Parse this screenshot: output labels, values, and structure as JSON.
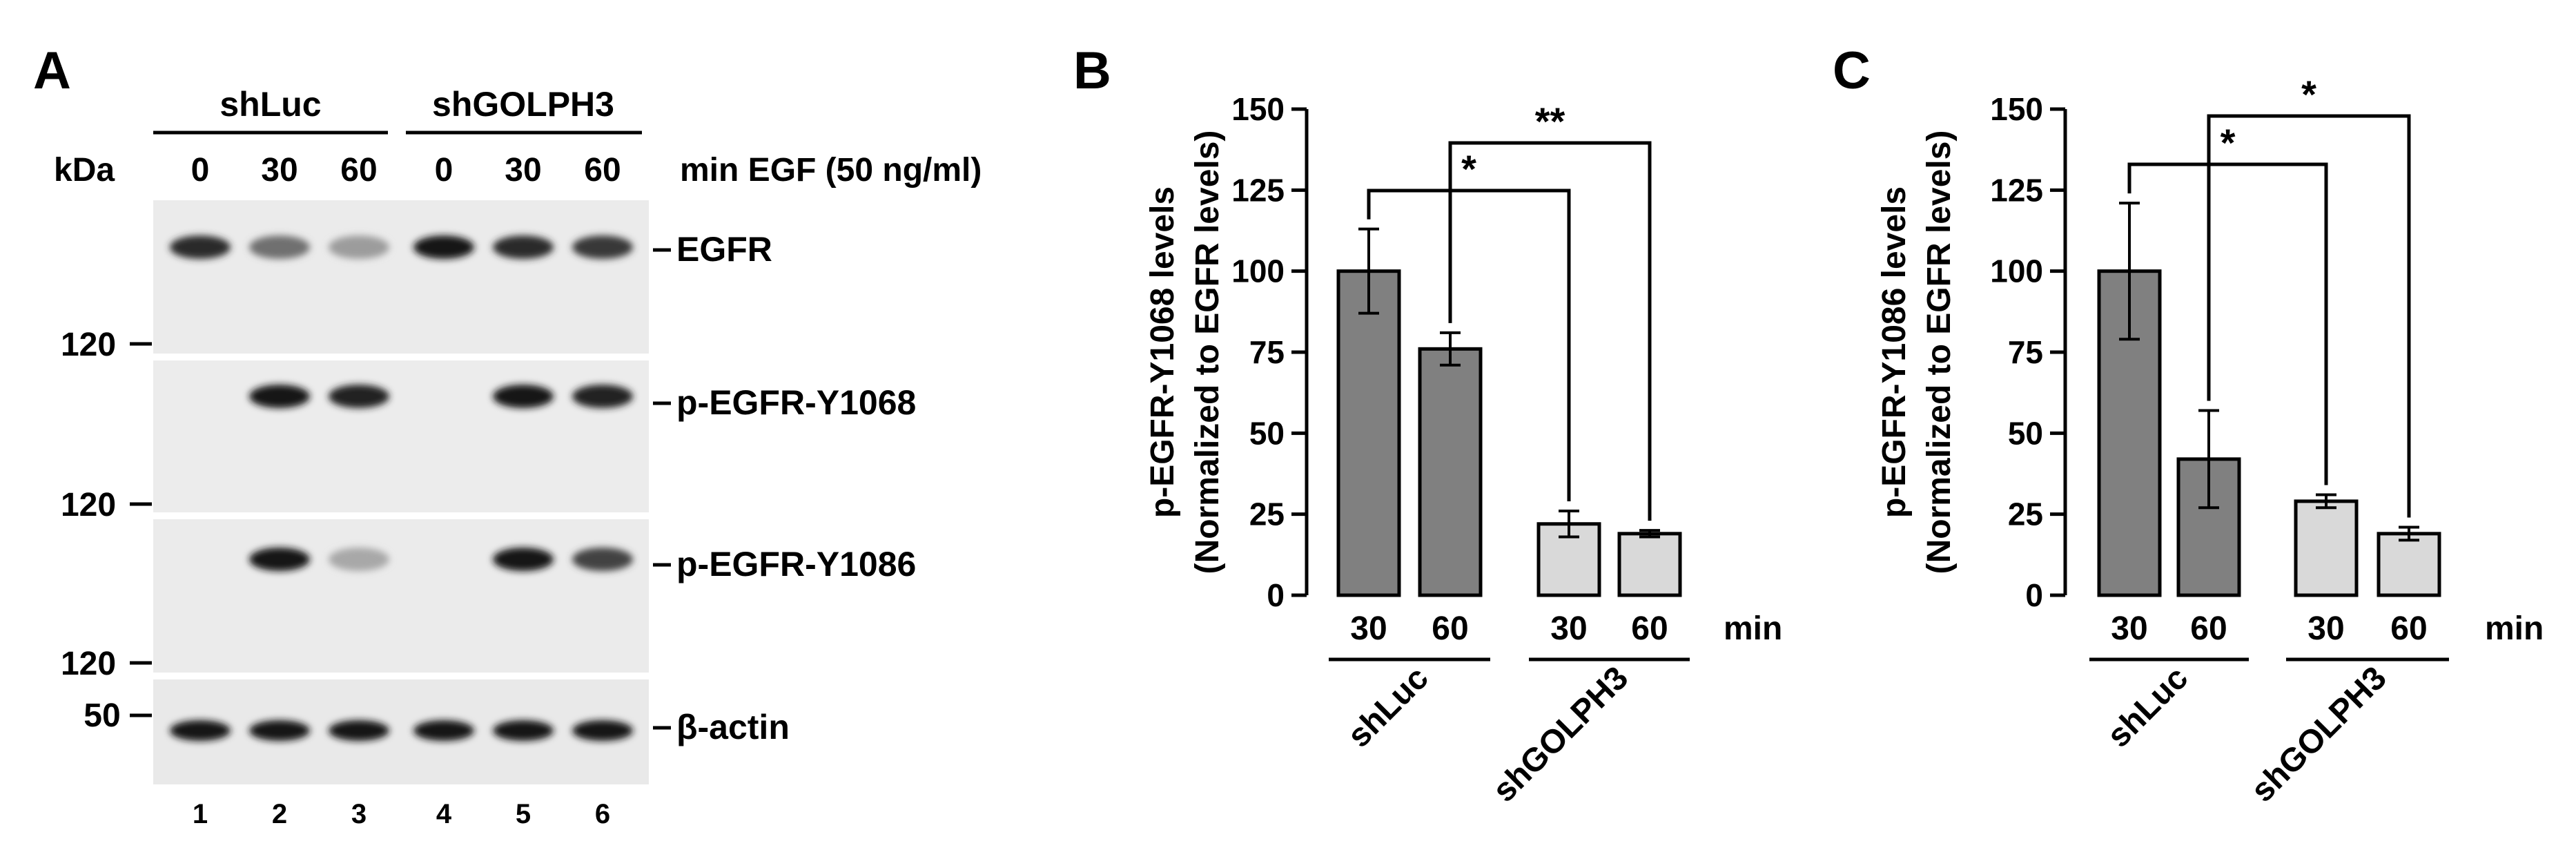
{
  "panels": {
    "a": {
      "letter": "A",
      "group_labels": [
        "shLuc",
        "shGOLPH3"
      ],
      "kda_label": "kDa",
      "time_labels": [
        "0",
        "30",
        "60",
        "0",
        "30",
        "60"
      ],
      "treatment_label": "min EGF (50 ng/ml)",
      "marker_labels": [
        "120",
        "120",
        "120",
        "50"
      ],
      "blot_labels": [
        "EGFR",
        "p-EGFR-Y1068",
        "p-EGFR-Y1086",
        "β-actin"
      ],
      "lane_numbers": [
        "1",
        "2",
        "3",
        "4",
        "5",
        "6"
      ],
      "band_intensity": [
        [
          0.85,
          0.55,
          0.35,
          0.95,
          0.85,
          0.8
        ],
        [
          0.0,
          0.95,
          0.9,
          0.0,
          0.95,
          0.9
        ],
        [
          0.0,
          0.95,
          0.3,
          0.0,
          0.95,
          0.75
        ],
        [
          0.95,
          0.95,
          0.95,
          0.95,
          0.95,
          0.95
        ]
      ]
    },
    "b": {
      "letter": "B"
    },
    "c": {
      "letter": "C"
    }
  },
  "chart_data": [
    {
      "type": "bar",
      "panel": "B",
      "ylabel_line1": "p-EGFR-Y1068 levels",
      "ylabel_line2": "(Normalized to EGFR levels)",
      "ylim": [
        0,
        150
      ],
      "yticks": [
        "0",
        "25",
        "50",
        "75",
        "100",
        "125",
        "150"
      ],
      "categories": [
        "30",
        "60",
        "30",
        "60"
      ],
      "x_unit": "min",
      "groups": [
        "shLuc",
        "shGOLPH3"
      ],
      "values": [
        100,
        76,
        22,
        19
      ],
      "errors": [
        13,
        5,
        4,
        1
      ],
      "bar_colors": [
        "#808080",
        "#808080",
        "#d9d9d9",
        "#d9d9d9"
      ],
      "significance": [
        {
          "from": 0,
          "to": 2,
          "label": "*"
        },
        {
          "from": 1,
          "to": 3,
          "label": "**"
        }
      ]
    },
    {
      "type": "bar",
      "panel": "C",
      "ylabel_line1": "p-EGFR-Y1086 levels",
      "ylabel_line2": "(Normalized to EGFR levels)",
      "ylim": [
        0,
        150
      ],
      "yticks": [
        "0",
        "25",
        "50",
        "75",
        "100",
        "125",
        "150"
      ],
      "categories": [
        "30",
        "60",
        "30",
        "60"
      ],
      "x_unit": "min",
      "groups": [
        "shLuc",
        "shGOLPH3"
      ],
      "values": [
        100,
        42,
        29,
        19
      ],
      "errors": [
        21,
        15,
        2,
        2
      ],
      "bar_colors": [
        "#808080",
        "#808080",
        "#d9d9d9",
        "#d9d9d9"
      ],
      "significance": [
        {
          "from": 0,
          "to": 2,
          "label": "*"
        },
        {
          "from": 1,
          "to": 3,
          "label": "*"
        }
      ]
    }
  ]
}
